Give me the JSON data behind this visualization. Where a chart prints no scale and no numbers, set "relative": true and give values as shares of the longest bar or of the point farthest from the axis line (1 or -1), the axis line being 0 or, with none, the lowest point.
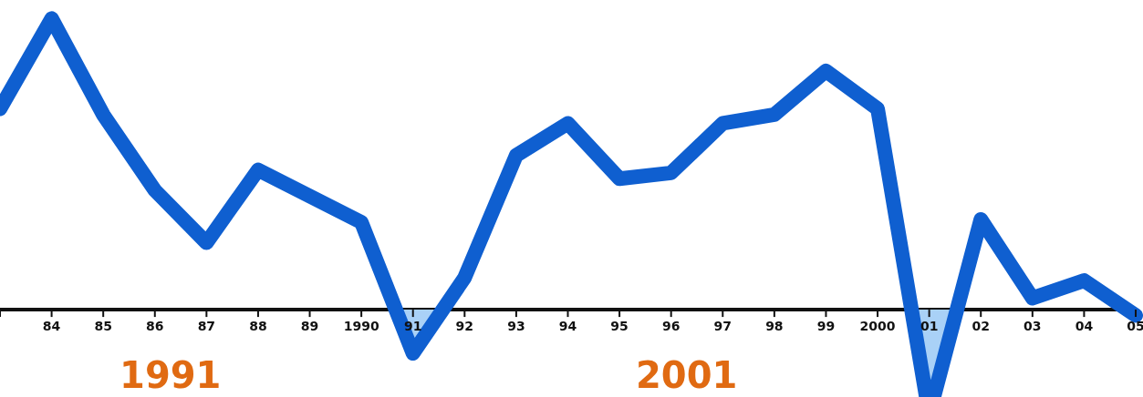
{
  "chart_data": {
    "type": "line",
    "relative": true,
    "categories": [
      null,
      "84",
      "85",
      "86",
      "87",
      "88",
      "89",
      "1990",
      "91",
      "92",
      "93",
      "94",
      "95",
      "96",
      "97",
      "98",
      "99",
      "2000",
      "01",
      "02",
      "03",
      "04",
      "05"
    ],
    "series": [
      {
        "color": "#0f5fd0",
        "values": [
          0.69,
          1,
          0.67,
          0.41,
          0.23,
          0.48,
          0.39,
          0.3,
          -0.15,
          0.11,
          0.53,
          0.64,
          0.45,
          0.47,
          0.64,
          0.67,
          0.82,
          0.69,
          -0.36,
          0.31,
          0.04,
          0.1,
          -0.02
        ]
      }
    ],
    "annotations": [
      "1991",
      "2001"
    ],
    "legend": false,
    "marker": "none",
    "line_style": "solid"
  }
}
